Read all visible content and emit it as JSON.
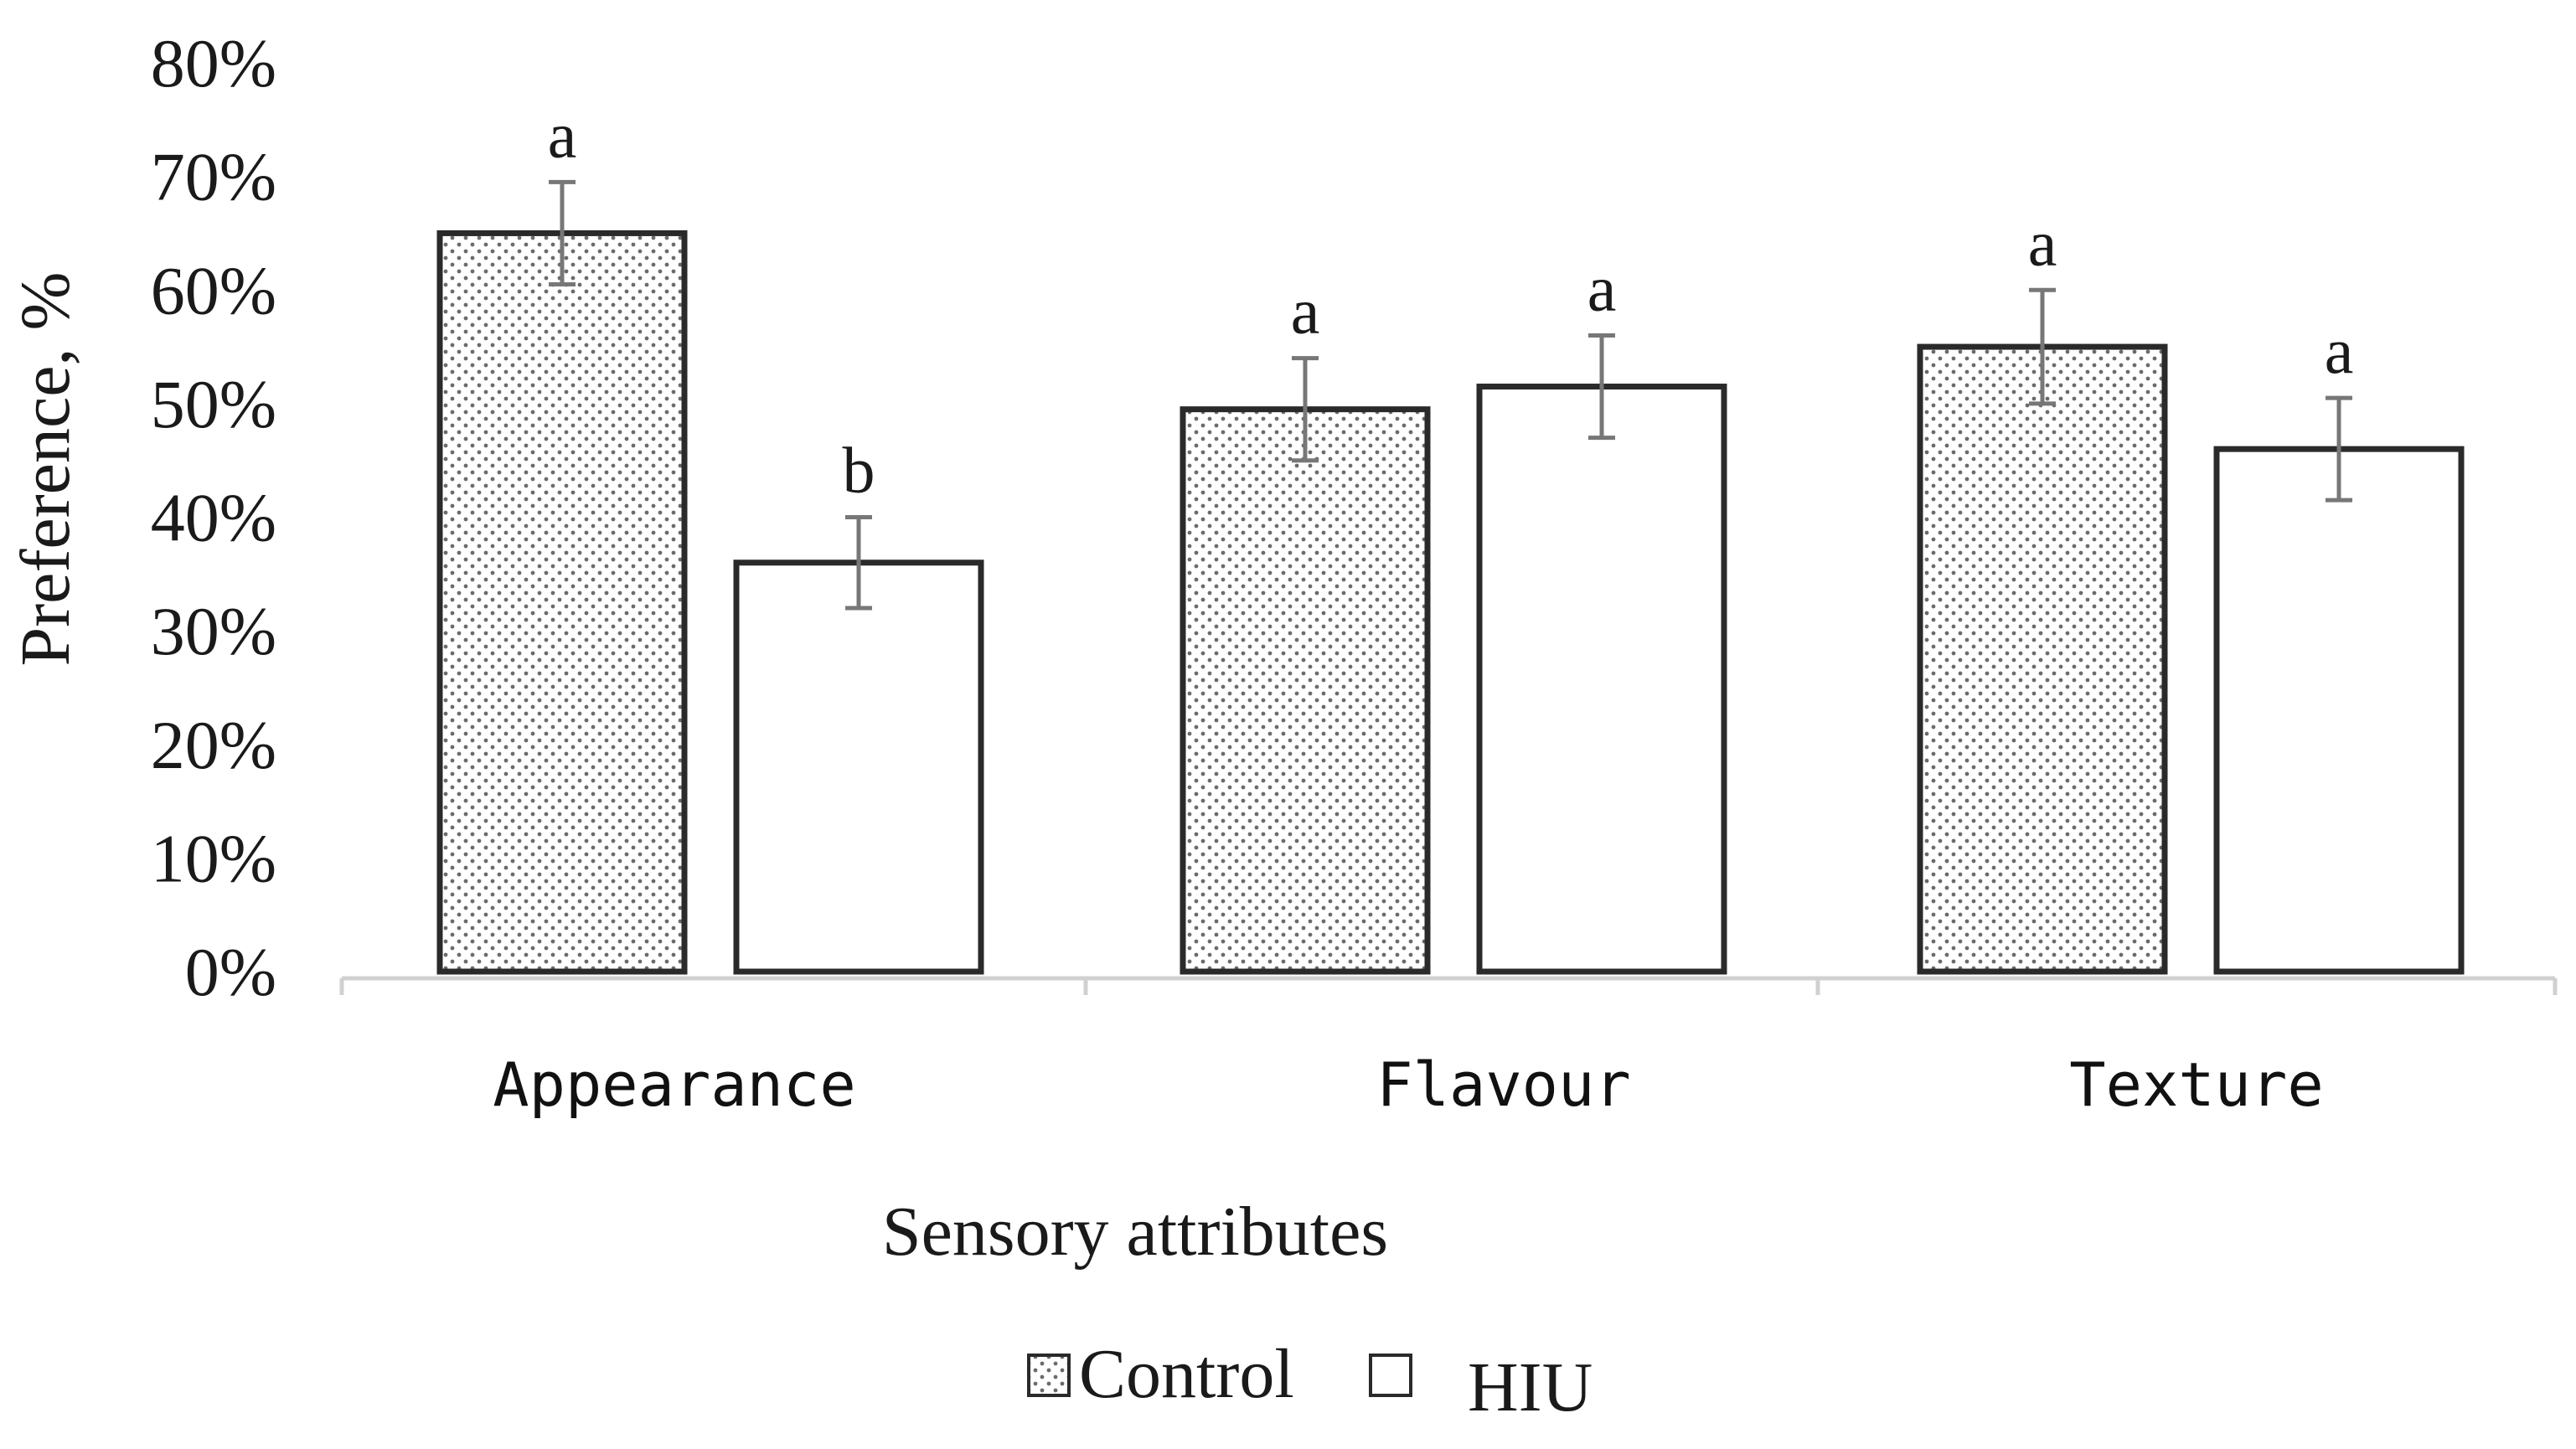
{
  "chart_data": {
    "type": "bar",
    "title": "",
    "xlabel": "Sensory attributes",
    "ylabel": "Preference, %",
    "ylim": [
      0,
      80
    ],
    "yticks": [
      "0%",
      "10%",
      "20%",
      "30%",
      "40%",
      "50%",
      "60%",
      "70%",
      "80%"
    ],
    "categories": [
      "Appearance",
      "Flavour",
      "Texture"
    ],
    "series": [
      {
        "name": "Control",
        "pattern": "dotted",
        "values": [
          65,
          49.5,
          55
        ],
        "errors": [
          4.5,
          4.5,
          5
        ],
        "significance": [
          "a",
          "a",
          "a"
        ]
      },
      {
        "name": "HIU",
        "pattern": "plain",
        "values": [
          36,
          51.5,
          46
        ],
        "errors": [
          4,
          4.5,
          4.5
        ],
        "significance": [
          "b",
          "a",
          "a"
        ]
      }
    ],
    "legend_position": "bottom-center",
    "grid": false,
    "colors": {
      "bar_stroke": "#2a2a2a",
      "pattern_dot": "#6b6b6b",
      "axis": "#d0d0d0",
      "error_bar": "#777777",
      "text": "#1a1a1a"
    }
  }
}
